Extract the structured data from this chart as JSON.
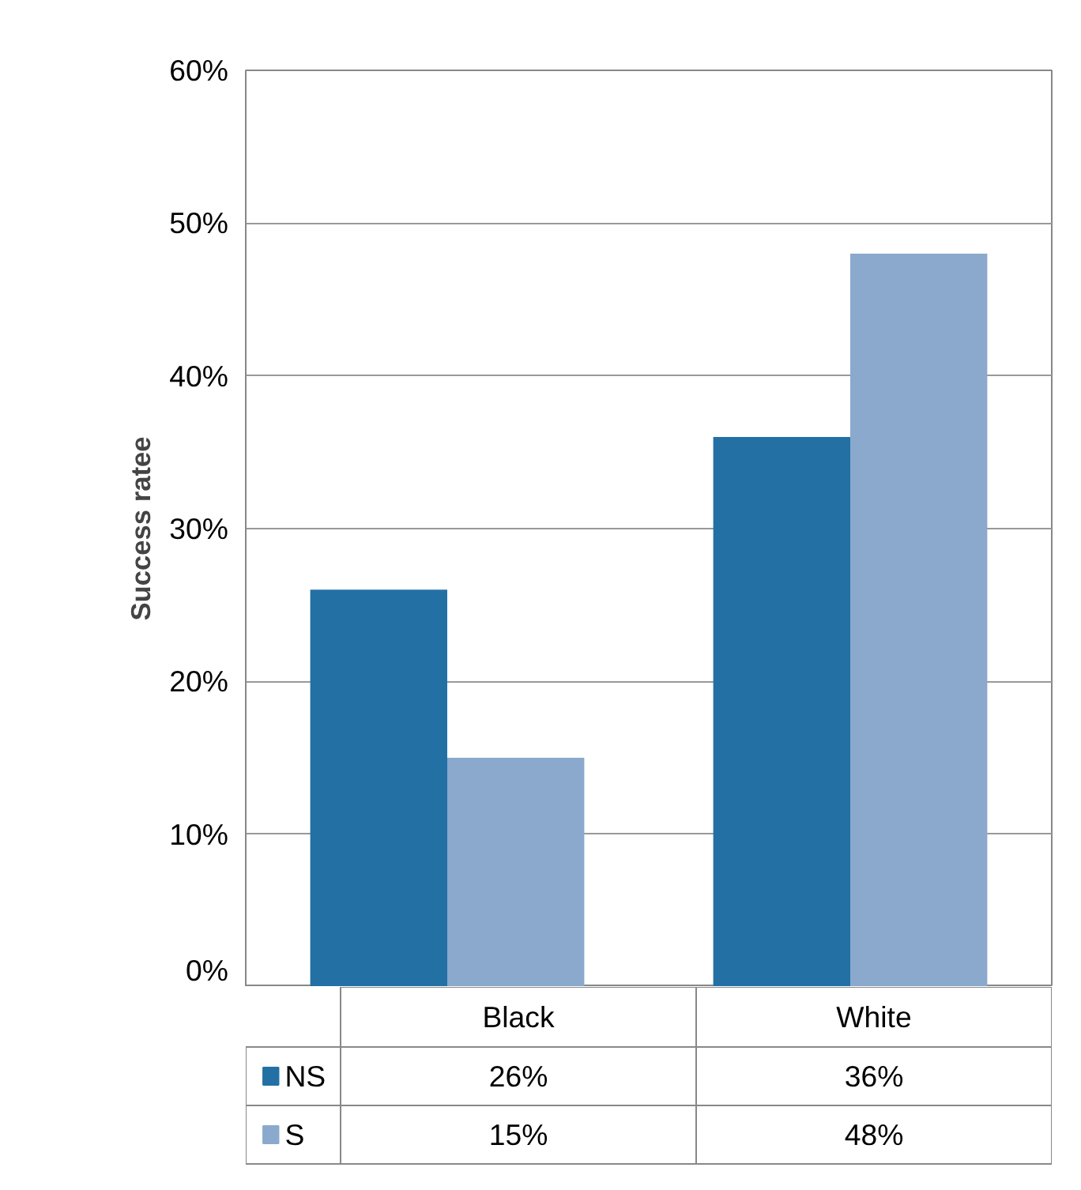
{
  "chart_data": {
    "type": "bar",
    "ylabel": "Success ratee",
    "categories": [
      "Black",
      "White"
    ],
    "series": [
      {
        "name": "NS",
        "color": "#2370a5",
        "values": [
          26,
          36
        ],
        "value_labels": [
          "26%",
          "36%"
        ]
      },
      {
        "name": "S",
        "color": "#8aa9cd",
        "values": [
          15,
          48
        ],
        "value_labels": [
          "15%",
          "48%"
        ]
      }
    ],
    "ylim": [
      0,
      60
    ],
    "yticks": [
      {
        "value": 0,
        "label": "0%"
      },
      {
        "value": 10,
        "label": "10%"
      },
      {
        "value": 20,
        "label": "20%"
      },
      {
        "value": 30,
        "label": "30%"
      },
      {
        "value": 40,
        "label": "40%"
      },
      {
        "value": 50,
        "label": "50%"
      },
      {
        "value": 60,
        "label": "60%"
      }
    ],
    "grid": "y",
    "legend": "bottom"
  }
}
